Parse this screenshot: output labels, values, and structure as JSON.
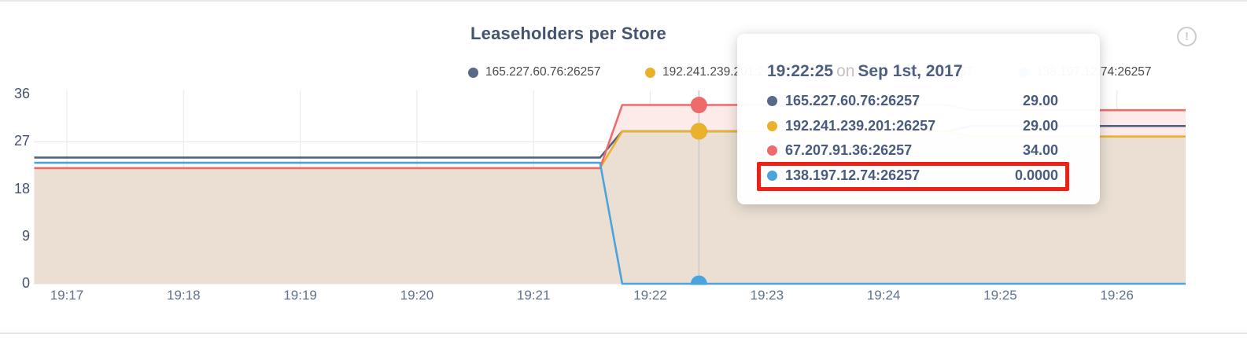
{
  "page": {
    "top_border_color": "#e7e7e9",
    "bottom_border_color": "#e7e7e9"
  },
  "header": {
    "title": "Leaseholders per Store",
    "info_icon_glyph": "!"
  },
  "colors": {
    "navy": "#5a6987",
    "yellow": "#eab22a",
    "red": "#ee6b6b",
    "blue": "#4ba4dc",
    "navy_line": "#536180",
    "tan_fill": "#eadfd2",
    "pink_fill": "#fcebe9",
    "grid": "#ebebeb",
    "hover_line": "#c9c9c9",
    "highlight_red": "#ee2116"
  },
  "legend": {
    "items": [
      {
        "label": "165.227.60.76:26257",
        "color_key": "navy"
      },
      {
        "label": "192.241.239.201:26257",
        "color_key": "yellow"
      },
      {
        "label": "67.207.91.36:26257",
        "color_key": "red"
      },
      {
        "label": "138.197.12.74:26257",
        "color_key": "blue"
      }
    ]
  },
  "tooltip": {
    "time": "19:22:25",
    "on_word": "on",
    "date": "Sep 1st, 2017",
    "rows": [
      {
        "label": "165.227.60.76:26257",
        "value": "29.00",
        "color_key": "navy"
      },
      {
        "label": "192.241.239.201:26257",
        "value": "29.00",
        "color_key": "yellow"
      },
      {
        "label": "67.207.91.36:26257",
        "value": "34.00",
        "color_key": "red"
      },
      {
        "label": "138.197.12.74:26257",
        "value": "0.0000",
        "color_key": "blue"
      }
    ],
    "highlighted_row_index": 3
  },
  "chart_data": {
    "type": "area",
    "title": "Leaseholders per Store",
    "xlabel": "time",
    "ylabel": "leaseholders",
    "x_axis": {
      "tick_labels": [
        "19:17",
        "19:18",
        "19:19",
        "19:20",
        "19:21",
        "19:22",
        "19:23",
        "19:24",
        "19:25",
        "19:26"
      ],
      "domain_minutes": [
        16.72,
        26.59
      ]
    },
    "y_axis": {
      "tick_labels": [
        36,
        27,
        18,
        9,
        0
      ],
      "range": [
        0,
        36
      ],
      "grid": true
    },
    "series": [
      {
        "name": "165.227.60.76:26257",
        "color_key": "navy_line",
        "fill_key": null,
        "points_min_val": [
          [
            16.72,
            24
          ],
          [
            21.57,
            24
          ],
          [
            21.76,
            29
          ],
          [
            24.55,
            29
          ],
          [
            24.75,
            30
          ],
          [
            26.59,
            30
          ]
        ]
      },
      {
        "name": "192.241.239.201:26257",
        "color_key": "yellow",
        "fill_key": "tan_fill",
        "points_min_val": [
          [
            16.72,
            22
          ],
          [
            21.57,
            22
          ],
          [
            21.76,
            29
          ],
          [
            24.55,
            29
          ],
          [
            24.75,
            28
          ],
          [
            26.59,
            28
          ]
        ]
      },
      {
        "name": "67.207.91.36:26257",
        "color_key": "red",
        "fill_key": "pink_fill",
        "points_min_val": [
          [
            16.72,
            22
          ],
          [
            21.57,
            22
          ],
          [
            21.76,
            34
          ],
          [
            24.55,
            34
          ],
          [
            24.75,
            33
          ],
          [
            26.59,
            33
          ]
        ]
      },
      {
        "name": "138.197.12.74:26257",
        "color_key": "blue",
        "fill_key": null,
        "points_min_val": [
          [
            16.72,
            23
          ],
          [
            21.57,
            23
          ],
          [
            21.76,
            0
          ],
          [
            26.59,
            0
          ]
        ]
      }
    ],
    "area_draw_order": [
      2,
      1
    ],
    "line_draw_order": [
      0,
      1,
      2,
      3
    ],
    "hover": {
      "x_minutes": 22.417,
      "time_label": "19:22:25",
      "values": [
        29,
        29,
        34,
        0
      ],
      "dot_draw_order": [
        0,
        1,
        2,
        3
      ]
    },
    "legend_position": "top"
  }
}
